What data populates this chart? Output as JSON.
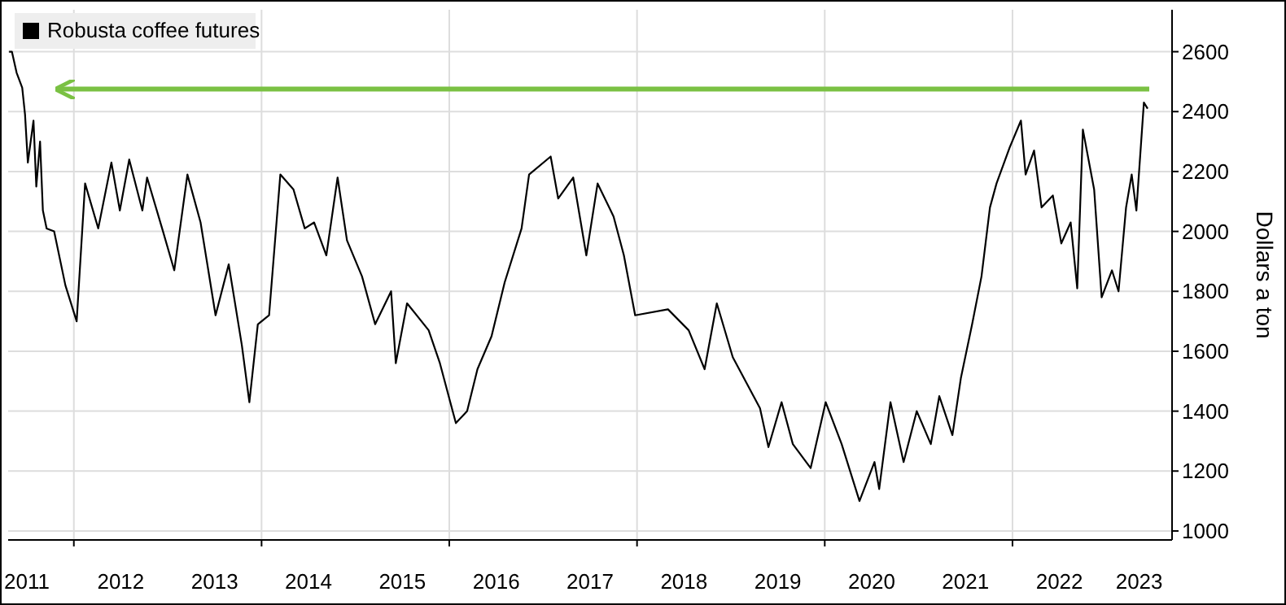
{
  "chart_data": {
    "type": "line",
    "title": "Robusta coffee futures",
    "ylabel": "Dollars a ton",
    "x": [
      2011.31,
      2011.34,
      2011.39,
      2011.45,
      2011.48,
      2011.51,
      2011.57,
      2011.6,
      2011.64,
      2011.67,
      2011.71,
      2011.79,
      2011.91,
      2012.03,
      2012.12,
      2012.26,
      2012.4,
      2012.49,
      2012.59,
      2012.73,
      2012.78,
      2012.95,
      2013.07,
      2013.21,
      2013.35,
      2013.51,
      2013.65,
      2013.79,
      2013.87,
      2013.96,
      2014.08,
      2014.2,
      2014.34,
      2014.46,
      2014.56,
      2014.69,
      2014.81,
      2014.91,
      2015.07,
      2015.21,
      2015.38,
      2015.43,
      2015.55,
      2015.78,
      2015.9,
      2016.07,
      2016.19,
      2016.3,
      2016.45,
      2016.59,
      2016.77,
      2016.85,
      2017.08,
      2017.16,
      2017.32,
      2017.46,
      2017.58,
      2017.75,
      2017.86,
      2017.98,
      2018.33,
      2018.55,
      2018.72,
      2018.85,
      2019.02,
      2019.31,
      2019.4,
      2019.54,
      2019.66,
      2019.85,
      2020.01,
      2020.18,
      2020.37,
      2020.53,
      2020.58,
      2020.7,
      2020.84,
      2020.98,
      2021.13,
      2021.22,
      2021.36,
      2021.45,
      2021.57,
      2021.67,
      2021.76,
      2021.83,
      2021.97,
      2022.09,
      2022.14,
      2022.23,
      2022.31,
      2022.43,
      2022.52,
      2022.62,
      2022.69,
      2022.75,
      2022.87,
      2022.95,
      2023.06,
      2023.13,
      2023.21,
      2023.27,
      2023.32,
      2023.4,
      2023.44
    ],
    "series": [
      {
        "color": "#000000",
        "values": [
          2600,
          2600,
          2530,
          2480,
          2390,
          2230,
          2370,
          2150,
          2300,
          2070,
          2010,
          2000,
          1820,
          1700,
          2160,
          2010,
          2230,
          2070,
          2240,
          2070,
          2180,
          2000,
          1870,
          2190,
          2030,
          1720,
          1890,
          1620,
          1430,
          1690,
          1720,
          2190,
          2140,
          2010,
          2030,
          1920,
          2180,
          1970,
          1850,
          1690,
          1800,
          1560,
          1760,
          1670,
          1560,
          1360,
          1400,
          1540,
          1650,
          1830,
          2010,
          2190,
          2250,
          2110,
          2180,
          1920,
          2160,
          2050,
          1920,
          1720,
          1740,
          1670,
          1540,
          1760,
          1580,
          1410,
          1280,
          1430,
          1290,
          1210,
          1430,
          1290,
          1100,
          1230,
          1140,
          1430,
          1230,
          1400,
          1290,
          1450,
          1320,
          1510,
          1690,
          1850,
          2080,
          2160,
          2280,
          2370,
          2190,
          2270,
          2080,
          2120,
          1960,
          2030,
          1810,
          2340,
          2140,
          1780,
          1870,
          1800,
          2080,
          2190,
          2070,
          2430,
          2410
        ]
      }
    ],
    "xlim": [
      2011.3,
      2023.7
    ],
    "xticks": [
      {
        "value": 2011.5,
        "label": "2011"
      },
      {
        "value": 2012,
        "label": null
      },
      {
        "value": 2012.5,
        "label": "2012"
      },
      {
        "value": 2013.5,
        "label": "2013"
      },
      {
        "value": 2014,
        "label": null
      },
      {
        "value": 2014.5,
        "label": "2014"
      },
      {
        "value": 2015.5,
        "label": "2015"
      },
      {
        "value": 2016,
        "label": null
      },
      {
        "value": 2016.5,
        "label": "2016"
      },
      {
        "value": 2017.5,
        "label": "2017"
      },
      {
        "value": 2018,
        "label": null
      },
      {
        "value": 2018.5,
        "label": "2018"
      },
      {
        "value": 2019.5,
        "label": "2019"
      },
      {
        "value": 2020,
        "label": null
      },
      {
        "value": 2020.5,
        "label": "2020"
      },
      {
        "value": 2021.5,
        "label": "2021"
      },
      {
        "value": 2022,
        "label": null
      },
      {
        "value": 2022.5,
        "label": "2022"
      },
      {
        "value": 2023.35,
        "label": "2023"
      }
    ],
    "ylim": [
      970,
      2740
    ],
    "yticks": [
      1000,
      1200,
      1400,
      1600,
      1800,
      2000,
      2200,
      2400,
      2600
    ],
    "grid": true,
    "marker": "none",
    "line_style": "solid",
    "ref_lines": [
      {
        "axis": "y",
        "value": 2475,
        "color": "#7ac143"
      }
    ]
  }
}
